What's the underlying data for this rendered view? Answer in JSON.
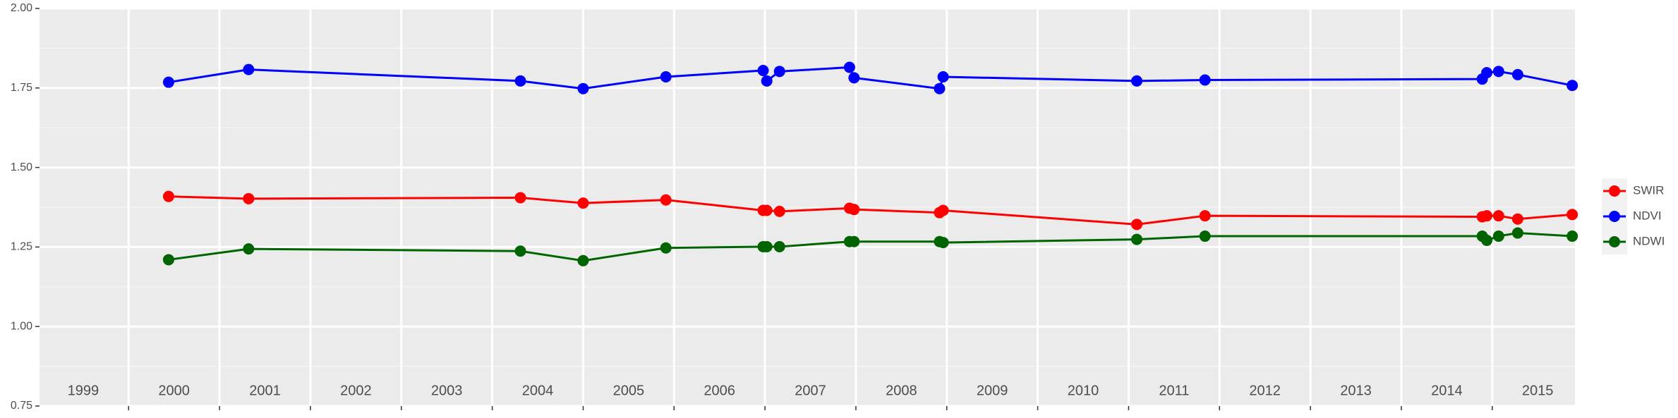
{
  "chart_data": {
    "type": "line",
    "x": [
      2000.44,
      2001.32,
      2004.31,
      2005.0,
      2005.91,
      2006.98,
      2007.02,
      2007.16,
      2007.93,
      2007.98,
      2008.92,
      2008.96,
      2011.09,
      2011.84,
      2014.89,
      2014.94,
      2015.07,
      2015.28,
      2015.88
    ],
    "series": [
      {
        "name": "SWIR",
        "color": "#ff0000",
        "values": [
          1.409,
          1.402,
          1.405,
          1.388,
          1.398,
          1.365,
          1.365,
          1.362,
          1.372,
          1.368,
          1.358,
          1.365,
          1.321,
          1.348,
          1.345,
          1.348,
          1.348,
          1.338,
          1.352
        ]
      },
      {
        "name": "NDVI",
        "color": "#0000ff",
        "values": [
          1.768,
          1.808,
          1.772,
          1.748,
          1.785,
          1.805,
          1.772,
          1.802,
          1.815,
          1.782,
          1.748,
          1.785,
          1.772,
          1.775,
          1.778,
          1.798,
          1.802,
          1.792,
          1.758
        ]
      },
      {
        "name": "NDWI",
        "color": "#006400",
        "values": [
          1.21,
          1.244,
          1.237,
          1.207,
          1.247,
          1.251,
          1.251,
          1.251,
          1.267,
          1.267,
          1.267,
          1.264,
          1.274,
          1.284,
          1.284,
          1.271,
          1.284,
          1.294,
          1.284
        ]
      }
    ],
    "xlim": [
      1999.02,
      2015.91
    ],
    "xticks": [
      2000,
      2001,
      2002,
      2003,
      2004,
      2005,
      2006,
      2007,
      2008,
      2009,
      2010,
      2011,
      2012,
      2013,
      2014,
      2015
    ],
    "year_labels": [
      "1999",
      "2000",
      "2001",
      "2002",
      "2003",
      "2004",
      "2005",
      "2006",
      "2007",
      "2008",
      "2009",
      "2010",
      "2011",
      "2012",
      "2013",
      "2014",
      "2015"
    ],
    "ylim": [
      0.75,
      2.0
    ],
    "yticks": [
      0.75,
      {
        "value": 1,
        "label": "1.00"
      },
      1.25,
      {
        "value": 1.5,
        "label": "1.50"
      },
      1.75,
      {
        "value": 2,
        "label": "2.00"
      }
    ],
    "grid": true,
    "legend": "right"
  }
}
